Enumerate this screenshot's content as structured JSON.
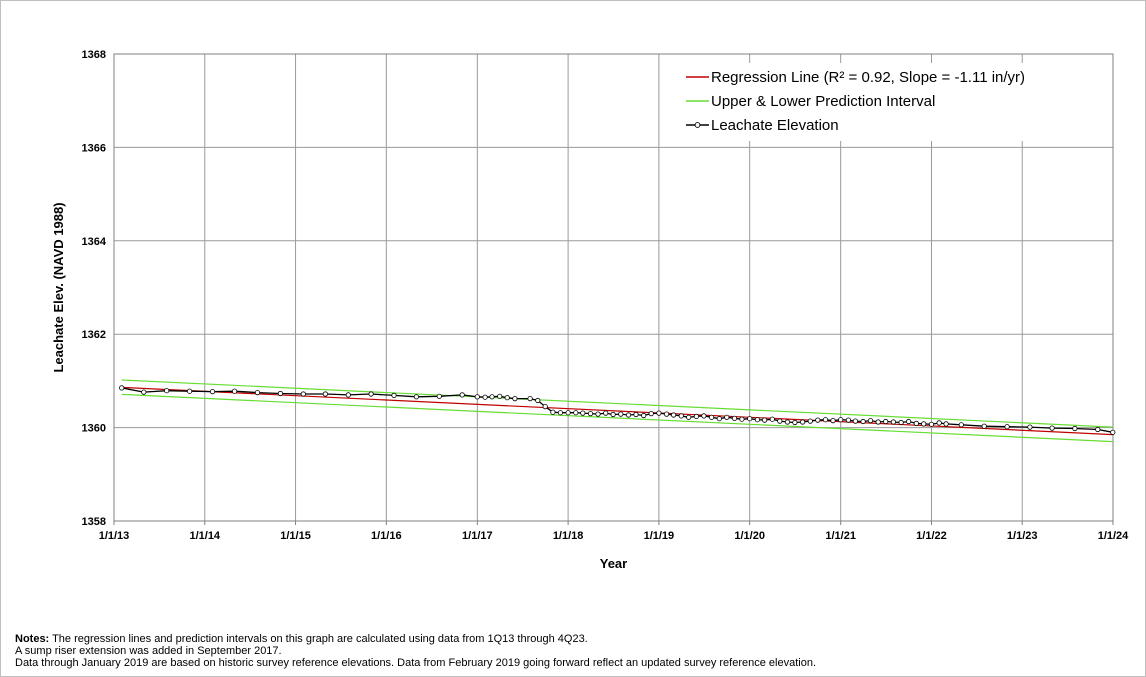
{
  "chart_data": {
    "type": "line",
    "title": "",
    "xlabel": "Year",
    "ylabel": "Leachate Elev. (NAVD 1988)",
    "ylim": [
      1358,
      1368
    ],
    "yticks": [
      1358,
      1360,
      1362,
      1364,
      1366,
      1368
    ],
    "xlim": [
      "2013-01-01",
      "2024-01-01"
    ],
    "xtick_labels": [
      "1/1/13",
      "1/1/14",
      "1/1/15",
      "1/1/16",
      "1/1/17",
      "1/1/18",
      "1/1/19",
      "1/1/20",
      "1/1/21",
      "1/1/22",
      "1/1/23",
      "1/1/24"
    ],
    "grid": true,
    "legend_position": "top-right",
    "legend": [
      {
        "label": "Regression Line (R² = 0.92, Slope = -1.11 in/yr)",
        "color": "#c00000",
        "marker": "none"
      },
      {
        "label": "Upper & Lower Prediction Interval",
        "color": "#66dd33",
        "marker": "none"
      },
      {
        "label": "Leachate Elevation",
        "color": "#000000",
        "marker": "circle"
      }
    ],
    "series": [
      {
        "name": "Regression Line (R² = 0.92, Slope = -1.11 in/yr)",
        "color": "#c00000",
        "x": [
          "2013-02-01",
          "2023-12-31"
        ],
        "y": [
          1360.86,
          1359.85
        ]
      },
      {
        "name": "Upper & Lower Prediction Interval",
        "color": "#66dd33",
        "x": [
          "2013-02-01",
          "2023-12-31"
        ],
        "y": [
          1361.02,
          1360.01
        ]
      },
      {
        "name": "Upper & Lower Prediction Interval",
        "color": "#66dd33",
        "x": [
          "2013-02-01",
          "2023-12-31"
        ],
        "y": [
          1360.71,
          1359.7
        ]
      },
      {
        "name": "Leachate Elevation",
        "color": "#000000",
        "x": [
          "2013-02-01",
          "2013-05-01",
          "2013-08-01",
          "2013-11-01",
          "2014-02-01",
          "2014-05-01",
          "2014-08-01",
          "2014-11-01",
          "2015-02-01",
          "2015-05-01",
          "2015-08-01",
          "2015-11-01",
          "2016-02-01",
          "2016-05-01",
          "2016-08-01",
          "2016-11-01",
          "2017-01-01",
          "2017-02-01",
          "2017-03-01",
          "2017-04-01",
          "2017-05-01",
          "2017-06-01",
          "2017-08-01",
          "2017-09-01",
          "2017-10-01",
          "2017-11-01",
          "2017-12-01",
          "2018-01-01",
          "2018-02-01",
          "2018-03-01",
          "2018-04-01",
          "2018-05-01",
          "2018-06-01",
          "2018-07-01",
          "2018-08-01",
          "2018-09-01",
          "2018-10-01",
          "2018-11-01",
          "2018-12-01",
          "2019-01-01",
          "2019-02-01",
          "2019-03-01",
          "2019-04-01",
          "2019-05-01",
          "2019-06-01",
          "2019-07-01",
          "2019-08-01",
          "2019-09-01",
          "2019-10-01",
          "2019-11-01",
          "2019-12-01",
          "2020-01-01",
          "2020-02-01",
          "2020-03-01",
          "2020-04-01",
          "2020-05-01",
          "2020-06-01",
          "2020-07-01",
          "2020-08-01",
          "2020-09-01",
          "2020-10-01",
          "2020-11-01",
          "2020-12-01",
          "2021-01-01",
          "2021-02-01",
          "2021-03-01",
          "2021-04-01",
          "2021-05-01",
          "2021-06-01",
          "2021-07-01",
          "2021-08-01",
          "2021-09-01",
          "2021-10-01",
          "2021-11-01",
          "2021-12-01",
          "2022-01-01",
          "2022-02-01",
          "2022-03-01",
          "2022-05-01",
          "2022-08-01",
          "2022-11-01",
          "2023-02-01",
          "2023-05-01",
          "2023-08-01",
          "2023-11-01",
          "2023-12-31"
        ],
        "y": [
          1360.85,
          1360.76,
          1360.79,
          1360.78,
          1360.77,
          1360.78,
          1360.75,
          1360.73,
          1360.72,
          1360.72,
          1360.7,
          1360.72,
          1360.69,
          1360.66,
          1360.67,
          1360.7,
          1360.66,
          1360.65,
          1360.66,
          1360.67,
          1360.64,
          1360.62,
          1360.62,
          1360.58,
          1360.45,
          1360.33,
          1360.32,
          1360.32,
          1360.32,
          1360.31,
          1360.3,
          1360.29,
          1360.31,
          1360.28,
          1360.29,
          1360.27,
          1360.28,
          1360.26,
          1360.3,
          1360.31,
          1360.29,
          1360.27,
          1360.25,
          1360.22,
          1360.24,
          1360.25,
          1360.22,
          1360.19,
          1360.22,
          1360.2,
          1360.18,
          1360.19,
          1360.17,
          1360.16,
          1360.18,
          1360.14,
          1360.12,
          1360.11,
          1360.12,
          1360.14,
          1360.16,
          1360.17,
          1360.15,
          1360.17,
          1360.16,
          1360.14,
          1360.13,
          1360.15,
          1360.12,
          1360.13,
          1360.12,
          1360.11,
          1360.13,
          1360.09,
          1360.08,
          1360.07,
          1360.1,
          1360.08,
          1360.06,
          1360.03,
          1360.02,
          1360.01,
          1359.99,
          1359.98,
          1359.96,
          1359.9
        ]
      }
    ]
  },
  "notes": {
    "label": "Notes:",
    "line1": " The regression lines and prediction intervals on this graph are calculated using data from 1Q13 through 4Q23.",
    "line2": "A sump riser extension was added in September 2017.",
    "line3": "Data through January 2019 are based on historic survey reference elevations. Data from February 2019 going forward reflect an updated survey reference elevation."
  }
}
